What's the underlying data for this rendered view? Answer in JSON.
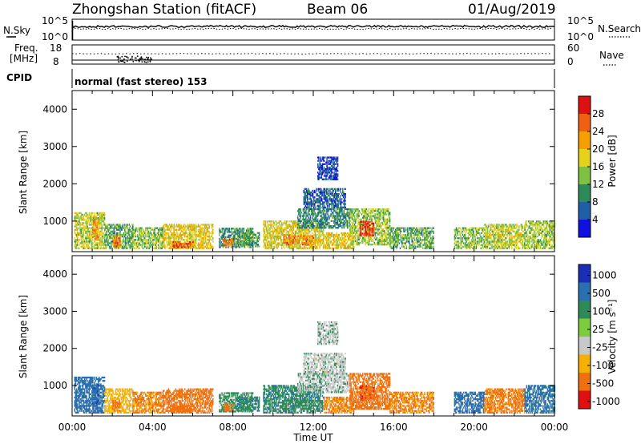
{
  "header": {
    "station": "Zhongshan Station (fitACF)",
    "beam": "Beam 06",
    "date": "01/Aug/2019"
  },
  "panels": {
    "nsky": {
      "label": "N.Sky",
      "ticks": [
        "10^5",
        "10^0"
      ]
    },
    "nsearch": {
      "label": "N.Search",
      "ticks": [
        "10^5",
        "10^0"
      ]
    },
    "freq": {
      "label_line1": "Freq.",
      "label_line2": "[MHz]",
      "ticks": [
        "18",
        "8"
      ]
    },
    "nave": {
      "label": "Nave",
      "ticks": [
        "60",
        "0"
      ]
    },
    "cpid": {
      "label": "CPID",
      "text": "normal (fast stereo) 153"
    }
  },
  "x_axis": {
    "label": "Time UT",
    "ticks": [
      "00:00",
      "04:00",
      "08:00",
      "12:00",
      "16:00",
      "20:00",
      "00:00"
    ]
  },
  "power_panel": {
    "ylabel": "Slant Range [km]",
    "yticks": [
      "1000",
      "2000",
      "3000",
      "4000"
    ],
    "colorbar_label": "Power [dB]",
    "colorbar_ticks": [
      "4",
      "8",
      "12",
      "16",
      "20",
      "24",
      "28"
    ]
  },
  "velocity_panel": {
    "ylabel": "Slant Range [km]",
    "yticks": [
      "1000",
      "2000",
      "3000",
      "4000"
    ],
    "colorbar_label": "Velocity [m s⁻¹]",
    "colorbar_ticks": [
      "1000",
      "500",
      "100",
      "25",
      "-25",
      "-100",
      "-500",
      "-1000"
    ]
  },
  "chart_data": {
    "type": "heatmap",
    "x_unit": "hours UT",
    "x_range": [
      0,
      24
    ],
    "y_unit": "km",
    "y_range": [
      180,
      4500
    ],
    "power_colors": [
      "#1010e0",
      "#1f5fa8",
      "#2e8b57",
      "#7fc241",
      "#e6d21a",
      "#f5a000",
      "#f06010",
      "#e01010"
    ],
    "power_bins": [
      0,
      4,
      8,
      12,
      16,
      20,
      24,
      28,
      32
    ],
    "velocity_colors": [
      "#1c2eb8",
      "#2a6fb0",
      "#2e8b57",
      "#7ccc3c",
      "#c8c8c8",
      "#f5b000",
      "#f07010",
      "#e01010"
    ],
    "velocity_bins": [
      1000,
      500,
      100,
      25,
      -25,
      -100,
      -500,
      -1000
    ],
    "regions": [
      {
        "t": [
          0.1,
          1.6
        ],
        "r": [
          250,
          1200
        ],
        "power": 16,
        "velocity": 200
      },
      {
        "t": [
          1.0,
          1.3
        ],
        "r": [
          500,
          1000
        ],
        "power": 23,
        "velocity": 400
      },
      {
        "t": [
          1.6,
          3.0
        ],
        "r": [
          250,
          900
        ],
        "power": 12,
        "velocity": -50
      },
      {
        "t": [
          2.0,
          2.4
        ],
        "r": [
          300,
          600
        ],
        "power": 24,
        "velocity": -150
      },
      {
        "t": [
          3.0,
          4.5
        ],
        "r": [
          250,
          800
        ],
        "power": 14,
        "velocity": -120
      },
      {
        "t": [
          4.5,
          7.0
        ],
        "r": [
          250,
          900
        ],
        "power": 19,
        "velocity": -200
      },
      {
        "t": [
          5.0,
          6.0
        ],
        "r": [
          280,
          450
        ],
        "power": 27,
        "velocity": -300
      },
      {
        "t": [
          7.3,
          9.0
        ],
        "r": [
          280,
          800
        ],
        "power": 10,
        "velocity": 50
      },
      {
        "t": [
          7.5,
          8.0
        ],
        "r": [
          300,
          500
        ],
        "power": 24,
        "velocity": -200
      },
      {
        "t": [
          8.2,
          9.3
        ],
        "r": [
          300,
          700
        ],
        "power": 12,
        "velocity": 80
      },
      {
        "t": [
          9.5,
          12.5
        ],
        "r": [
          250,
          1000
        ],
        "power": 18,
        "velocity": 80
      },
      {
        "t": [
          10.5,
          12.0
        ],
        "r": [
          350,
          600
        ],
        "power": 24,
        "velocity": 60
      },
      {
        "t": [
          11.5,
          13.6
        ],
        "r": [
          1300,
          1850
        ],
        "power": 6,
        "velocity": 5
      },
      {
        "t": [
          12.2,
          13.2
        ],
        "r": [
          2100,
          2700
        ],
        "power": 4,
        "velocity": 10
      },
      {
        "t": [
          11.2,
          13.8
        ],
        "r": [
          800,
          1300
        ],
        "power": 9,
        "velocity": 15
      },
      {
        "t": [
          12.5,
          14.0
        ],
        "r": [
          250,
          700
        ],
        "power": 19,
        "velocity": -120
      },
      {
        "t": [
          13.8,
          15.8
        ],
        "r": [
          350,
          1300
        ],
        "power": 15,
        "velocity": -200
      },
      {
        "t": [
          14.3,
          15.0
        ],
        "r": [
          600,
          1000
        ],
        "power": 29,
        "velocity": -400
      },
      {
        "t": [
          15.8,
          18.0
        ],
        "r": [
          250,
          800
        ],
        "power": 12,
        "velocity": -120
      },
      {
        "t": [
          19.0,
          20.5
        ],
        "r": [
          250,
          800
        ],
        "power": 14,
        "velocity": 200
      },
      {
        "t": [
          20.5,
          22.5
        ],
        "r": [
          250,
          900
        ],
        "power": 16,
        "velocity": -150
      },
      {
        "t": [
          22.5,
          24.0
        ],
        "r": [
          250,
          1000
        ],
        "power": 15,
        "velocity": 150
      }
    ]
  }
}
